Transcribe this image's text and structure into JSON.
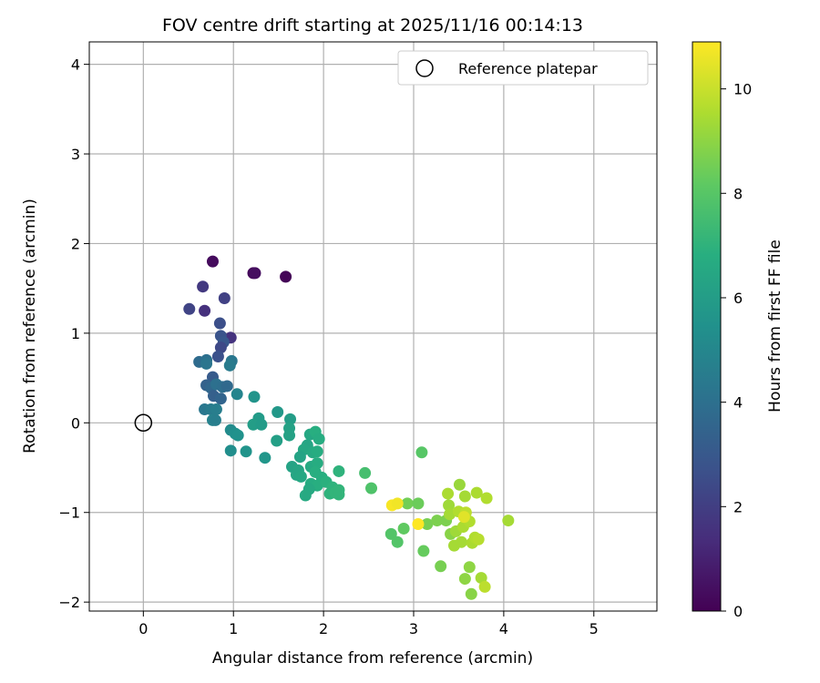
{
  "chart_data": {
    "type": "scatter",
    "title": "FOV centre drift starting at 2025/11/16 00:14:13",
    "xlabel": "Angular distance from reference (arcmin)",
    "ylabel": "Rotation from reference (arcmin)",
    "xlim": [
      -0.6,
      5.7
    ],
    "ylim": [
      -2.1,
      4.25
    ],
    "xticks": [
      0,
      1,
      2,
      3,
      4,
      5
    ],
    "yticks": [
      -2,
      -1,
      0,
      1,
      2,
      3,
      4
    ],
    "grid": true,
    "colormap": "viridis",
    "colorbar": {
      "label": "Hours from first FF file",
      "range": [
        0,
        10.9
      ],
      "ticks": [
        0,
        2,
        4,
        6,
        8,
        10
      ]
    },
    "legend": {
      "position": "top-right",
      "entries": [
        {
          "label": "Reference platepar",
          "marker": "open-circle"
        }
      ]
    },
    "reference_point": {
      "x": 0,
      "y": 0
    },
    "points": [
      {
        "x": 0.77,
        "y": 1.8,
        "h": 0.3
      },
      {
        "x": 1.22,
        "y": 1.67,
        "h": 0.2
      },
      {
        "x": 1.24,
        "y": 1.67,
        "h": 0.4
      },
      {
        "x": 1.58,
        "y": 1.63,
        "h": 0.1
      },
      {
        "x": 0.66,
        "y": 1.52,
        "h": 1.8
      },
      {
        "x": 0.9,
        "y": 1.39,
        "h": 2.1
      },
      {
        "x": 0.51,
        "y": 1.27,
        "h": 2.2
      },
      {
        "x": 0.68,
        "y": 1.25,
        "h": 1.5
      },
      {
        "x": 0.85,
        "y": 1.11,
        "h": 2.6
      },
      {
        "x": 0.97,
        "y": 0.95,
        "h": 1.6
      },
      {
        "x": 0.86,
        "y": 0.97,
        "h": 2.8
      },
      {
        "x": 0.89,
        "y": 0.9,
        "h": 3.0
      },
      {
        "x": 0.86,
        "y": 0.84,
        "h": 2.4
      },
      {
        "x": 0.83,
        "y": 0.74,
        "h": 2.7
      },
      {
        "x": 0.98,
        "y": 0.69,
        "h": 4.3
      },
      {
        "x": 0.96,
        "y": 0.64,
        "h": 4.5
      },
      {
        "x": 0.62,
        "y": 0.68,
        "h": 3.8
      },
      {
        "x": 0.7,
        "y": 0.7,
        "h": 4.0
      },
      {
        "x": 0.7,
        "y": 0.66,
        "h": 4.2
      },
      {
        "x": 0.77,
        "y": 0.51,
        "h": 3.1
      },
      {
        "x": 0.7,
        "y": 0.42,
        "h": 3.4
      },
      {
        "x": 0.75,
        "y": 0.39,
        "h": 3.6
      },
      {
        "x": 0.81,
        "y": 0.43,
        "h": 4.0
      },
      {
        "x": 0.88,
        "y": 0.4,
        "h": 3.9
      },
      {
        "x": 0.93,
        "y": 0.41,
        "h": 3.7
      },
      {
        "x": 0.78,
        "y": 0.3,
        "h": 3.3
      },
      {
        "x": 0.86,
        "y": 0.27,
        "h": 3.5
      },
      {
        "x": 1.04,
        "y": 0.32,
        "h": 4.9
      },
      {
        "x": 0.68,
        "y": 0.15,
        "h": 4.3
      },
      {
        "x": 0.75,
        "y": 0.15,
        "h": 4.5
      },
      {
        "x": 0.81,
        "y": 0.15,
        "h": 4.6
      },
      {
        "x": 0.77,
        "y": 0.03,
        "h": 4.8
      },
      {
        "x": 0.8,
        "y": 0.03,
        "h": 4.6
      },
      {
        "x": 1.23,
        "y": 0.29,
        "h": 5.6
      },
      {
        "x": 1.49,
        "y": 0.12,
        "h": 5.8
      },
      {
        "x": 1.28,
        "y": 0.05,
        "h": 5.9
      },
      {
        "x": 1.22,
        "y": -0.02,
        "h": 6.0
      },
      {
        "x": 1.31,
        "y": -0.02,
        "h": 5.9
      },
      {
        "x": 1.63,
        "y": 0.04,
        "h": 6.0
      },
      {
        "x": 1.62,
        "y": -0.06,
        "h": 6.2
      },
      {
        "x": 1.62,
        "y": -0.14,
        "h": 6.2
      },
      {
        "x": 0.97,
        "y": -0.08,
        "h": 5.2
      },
      {
        "x": 1.02,
        "y": -0.12,
        "h": 5.4
      },
      {
        "x": 1.05,
        "y": -0.14,
        "h": 5.5
      },
      {
        "x": 1.48,
        "y": -0.2,
        "h": 6.1
      },
      {
        "x": 1.85,
        "y": -0.13,
        "h": 6.5
      },
      {
        "x": 1.91,
        "y": -0.1,
        "h": 6.8
      },
      {
        "x": 1.95,
        "y": -0.18,
        "h": 6.7
      },
      {
        "x": 1.82,
        "y": -0.25,
        "h": 6.4
      },
      {
        "x": 1.78,
        "y": -0.3,
        "h": 6.5
      },
      {
        "x": 1.88,
        "y": -0.33,
        "h": 6.6
      },
      {
        "x": 1.93,
        "y": -0.32,
        "h": 6.7
      },
      {
        "x": 1.74,
        "y": -0.38,
        "h": 6.3
      },
      {
        "x": 0.97,
        "y": -0.31,
        "h": 5.3
      },
      {
        "x": 1.14,
        "y": -0.32,
        "h": 5.6
      },
      {
        "x": 1.35,
        "y": -0.39,
        "h": 5.7
      },
      {
        "x": 1.65,
        "y": -0.49,
        "h": 6.3
      },
      {
        "x": 1.72,
        "y": -0.53,
        "h": 6.4
      },
      {
        "x": 1.86,
        "y": -0.49,
        "h": 6.6
      },
      {
        "x": 1.93,
        "y": -0.45,
        "h": 6.7
      },
      {
        "x": 1.7,
        "y": -0.58,
        "h": 6.4
      },
      {
        "x": 1.75,
        "y": -0.6,
        "h": 6.5
      },
      {
        "x": 1.91,
        "y": -0.55,
        "h": 6.8
      },
      {
        "x": 1.98,
        "y": -0.61,
        "h": 6.8
      },
      {
        "x": 2.17,
        "y": -0.54,
        "h": 7.0
      },
      {
        "x": 1.86,
        "y": -0.68,
        "h": 6.7
      },
      {
        "x": 1.93,
        "y": -0.7,
        "h": 6.8
      },
      {
        "x": 2.03,
        "y": -0.66,
        "h": 6.9
      },
      {
        "x": 1.84,
        "y": -0.74,
        "h": 6.6
      },
      {
        "x": 2.1,
        "y": -0.72,
        "h": 7.0
      },
      {
        "x": 1.8,
        "y": -0.81,
        "h": 6.6
      },
      {
        "x": 2.07,
        "y": -0.79,
        "h": 7.0
      },
      {
        "x": 2.13,
        "y": -0.78,
        "h": 7.1
      },
      {
        "x": 2.17,
        "y": -0.8,
        "h": 7.1
      },
      {
        "x": 2.17,
        "y": -0.75,
        "h": 7.1
      },
      {
        "x": 2.46,
        "y": -0.56,
        "h": 7.6
      },
      {
        "x": 2.53,
        "y": -0.73,
        "h": 7.8
      },
      {
        "x": 3.09,
        "y": -0.33,
        "h": 8.0
      },
      {
        "x": 2.75,
        "y": -1.24,
        "h": 7.9
      },
      {
        "x": 2.82,
        "y": -1.33,
        "h": 7.9
      },
      {
        "x": 2.89,
        "y": -1.18,
        "h": 8.2
      },
      {
        "x": 2.93,
        "y": -0.9,
        "h": 8.5
      },
      {
        "x": 3.05,
        "y": -0.9,
        "h": 8.4
      },
      {
        "x": 3.11,
        "y": -1.43,
        "h": 8.3
      },
      {
        "x": 3.15,
        "y": -1.13,
        "h": 8.6
      },
      {
        "x": 3.26,
        "y": -1.09,
        "h": 8.7
      },
      {
        "x": 3.3,
        "y": -1.6,
        "h": 8.6
      },
      {
        "x": 3.36,
        "y": -1.09,
        "h": 8.7
      },
      {
        "x": 3.38,
        "y": -0.79,
        "h": 9.5
      },
      {
        "x": 3.39,
        "y": -0.92,
        "h": 9.3
      },
      {
        "x": 3.4,
        "y": -1.02,
        "h": 9.4
      },
      {
        "x": 3.41,
        "y": -1.24,
        "h": 8.9
      },
      {
        "x": 3.45,
        "y": -1.37,
        "h": 9.4
      },
      {
        "x": 3.47,
        "y": -1.21,
        "h": 9.3
      },
      {
        "x": 3.5,
        "y": -0.99,
        "h": 9.6
      },
      {
        "x": 3.51,
        "y": -0.69,
        "h": 9.2
      },
      {
        "x": 3.53,
        "y": -1.33,
        "h": 9.4
      },
      {
        "x": 3.55,
        "y": -1.16,
        "h": 9.5
      },
      {
        "x": 3.58,
        "y": -1.0,
        "h": 9.8
      },
      {
        "x": 3.57,
        "y": -0.82,
        "h": 9.4
      },
      {
        "x": 3.57,
        "y": -1.74,
        "h": 9.0
      },
      {
        "x": 3.62,
        "y": -1.61,
        "h": 9.0
      },
      {
        "x": 3.64,
        "y": -1.91,
        "h": 8.9
      },
      {
        "x": 3.62,
        "y": -1.1,
        "h": 9.6
      },
      {
        "x": 3.65,
        "y": -1.34,
        "h": 9.5
      },
      {
        "x": 3.68,
        "y": -1.28,
        "h": 9.6
      },
      {
        "x": 3.7,
        "y": -0.78,
        "h": 9.5
      },
      {
        "x": 3.72,
        "y": -1.3,
        "h": 9.7
      },
      {
        "x": 3.75,
        "y": -1.73,
        "h": 9.4
      },
      {
        "x": 3.79,
        "y": -1.83,
        "h": 9.8
      },
      {
        "x": 3.81,
        "y": -0.84,
        "h": 9.6
      },
      {
        "x": 4.05,
        "y": -1.09,
        "h": 9.4
      },
      {
        "x": 2.76,
        "y": -0.92,
        "h": 10.8
      },
      {
        "x": 2.82,
        "y": -0.9,
        "h": 10.7
      },
      {
        "x": 3.05,
        "y": -1.13,
        "h": 10.9
      },
      {
        "x": 3.56,
        "y": -1.05,
        "h": 10.4
      }
    ]
  }
}
